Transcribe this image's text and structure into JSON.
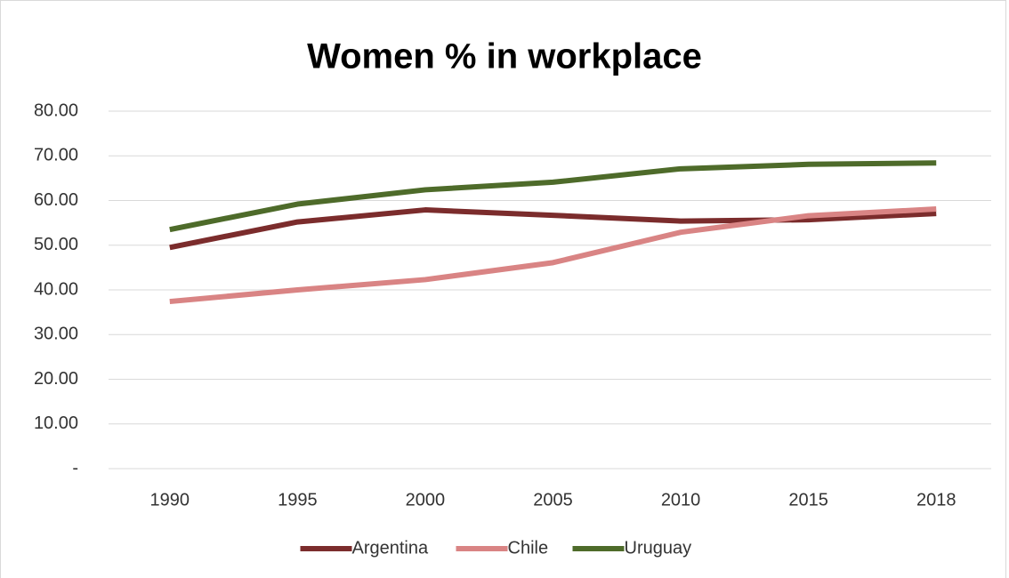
{
  "chart_data": {
    "type": "line",
    "title": "Women % in workplace",
    "categories": [
      "1990",
      "1995",
      "2000",
      "2005",
      "2010",
      "2015",
      "2018"
    ],
    "series": [
      {
        "name": "Argentina",
        "color": "#7b2c2c",
        "values": [
          49.5,
          55.2,
          57.9,
          56.7,
          55.4,
          55.7,
          57.1
        ]
      },
      {
        "name": "Chile",
        "color": "#d98484",
        "values": [
          37.4,
          40.0,
          42.3,
          46.1,
          52.9,
          56.6,
          58.1
        ]
      },
      {
        "name": "Uruguay",
        "color": "#4e6b2a",
        "values": [
          53.5,
          59.2,
          62.4,
          64.1,
          67.1,
          68.1,
          68.4
        ]
      }
    ],
    "ylim": [
      0,
      80
    ],
    "yticks": [
      {
        "value": 0,
        "label": "-"
      },
      {
        "value": 10,
        "label": "10.00"
      },
      {
        "value": 20,
        "label": "20.00"
      },
      {
        "value": 30,
        "label": "30.00"
      },
      {
        "value": 40,
        "label": "40.00"
      },
      {
        "value": 50,
        "label": "50.00"
      },
      {
        "value": 60,
        "label": "60.00"
      },
      {
        "value": 70,
        "label": "70.00"
      },
      {
        "value": 80,
        "label": "80.00"
      }
    ],
    "grid": true,
    "legend": "bottom"
  }
}
